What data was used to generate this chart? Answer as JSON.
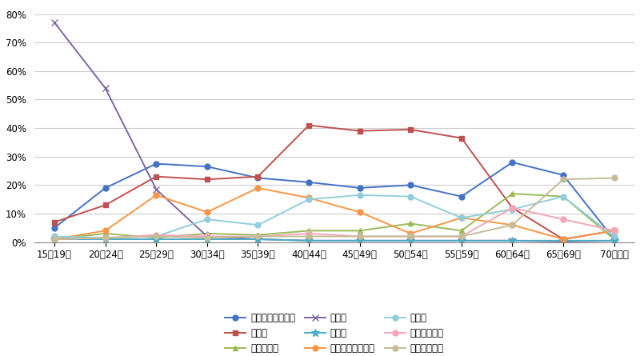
{
  "categories": [
    "15～19歳",
    "20～24歳",
    "25～29歳",
    "30～34歳",
    "35～39歳",
    "40～44歳",
    "45～49歳",
    "50～54歳",
    "55～59歳",
    "60～64歳",
    "65～69歳",
    "70歳以上"
  ],
  "series": [
    {
      "label": "就職・転職・転業",
      "color": "#4472C4",
      "marker": "o",
      "markersize": 5,
      "data": [
        5.0,
        19.0,
        27.5,
        26.5,
        22.5,
        21.0,
        19.0,
        20.0,
        16.0,
        28.0,
        23.5,
        1.0
      ]
    },
    {
      "label": "転　動",
      "color": "#C0504D",
      "marker": "s",
      "markersize": 5,
      "data": [
        7.0,
        13.0,
        23.0,
        22.0,
        23.0,
        41.0,
        39.0,
        39.5,
        36.5,
        12.0,
        1.0,
        4.0
      ]
    },
    {
      "label": "退職・廃業",
      "color": "#9BBB59",
      "marker": "^",
      "markersize": 5,
      "data": [
        1.0,
        3.0,
        1.5,
        3.0,
        2.5,
        4.0,
        4.0,
        6.5,
        4.0,
        17.0,
        16.0,
        1.0
      ]
    },
    {
      "label": "就　学",
      "color": "#8064A2",
      "marker": "x",
      "markersize": 6,
      "data": [
        77.0,
        54.0,
        18.5,
        2.0,
        1.0,
        0.5,
        0.5,
        0.5,
        0.5,
        0.5,
        0.2,
        0.5
      ]
    },
    {
      "label": "卒　業",
      "color": "#4BACC6",
      "marker": "*",
      "markersize": 7,
      "data": [
        1.0,
        1.0,
        1.0,
        1.0,
        1.0,
        0.5,
        0.5,
        0.5,
        0.5,
        0.5,
        0.5,
        0.5
      ]
    },
    {
      "label": "結婚・離婚・縁組",
      "color": "#F79646",
      "marker": "o",
      "markersize": 5,
      "data": [
        1.0,
        4.0,
        16.5,
        10.5,
        19.0,
        15.5,
        10.5,
        3.0,
        8.5,
        6.0,
        1.0,
        4.0
      ]
    },
    {
      "label": "住　宅",
      "color": "#92CDDC",
      "marker": "o",
      "markersize": 5,
      "data": [
        2.0,
        1.5,
        2.0,
        8.0,
        6.0,
        15.0,
        16.5,
        16.0,
        8.5,
        11.5,
        16.0,
        2.0
      ]
    },
    {
      "label": "交通の利便性",
      "color": "#F4A7B9",
      "marker": "o",
      "markersize": 5,
      "data": [
        1.0,
        1.5,
        2.5,
        2.0,
        2.0,
        3.0,
        2.0,
        2.0,
        2.0,
        12.0,
        8.0,
        4.0
      ]
    },
    {
      "label": "生活の利便性",
      "color": "#C4BD97",
      "marker": "o",
      "markersize": 5,
      "data": [
        1.0,
        1.5,
        2.0,
        1.5,
        2.0,
        2.0,
        2.0,
        2.0,
        2.0,
        6.0,
        22.0,
        22.5
      ]
    }
  ],
  "ylim": [
    0,
    83
  ],
  "yticks": [
    0,
    10,
    20,
    30,
    40,
    50,
    60,
    70,
    80
  ],
  "ytick_labels": [
    "0%",
    "10%",
    "20%",
    "30%",
    "40%",
    "50%",
    "60%",
    "70%",
    "80%"
  ],
  "background_color": "#FFFFFF",
  "grid_color": "#CCCCCC",
  "tick_fontsize": 8.5,
  "legend_fontsize": 8.5,
  "linewidth": 1.4
}
